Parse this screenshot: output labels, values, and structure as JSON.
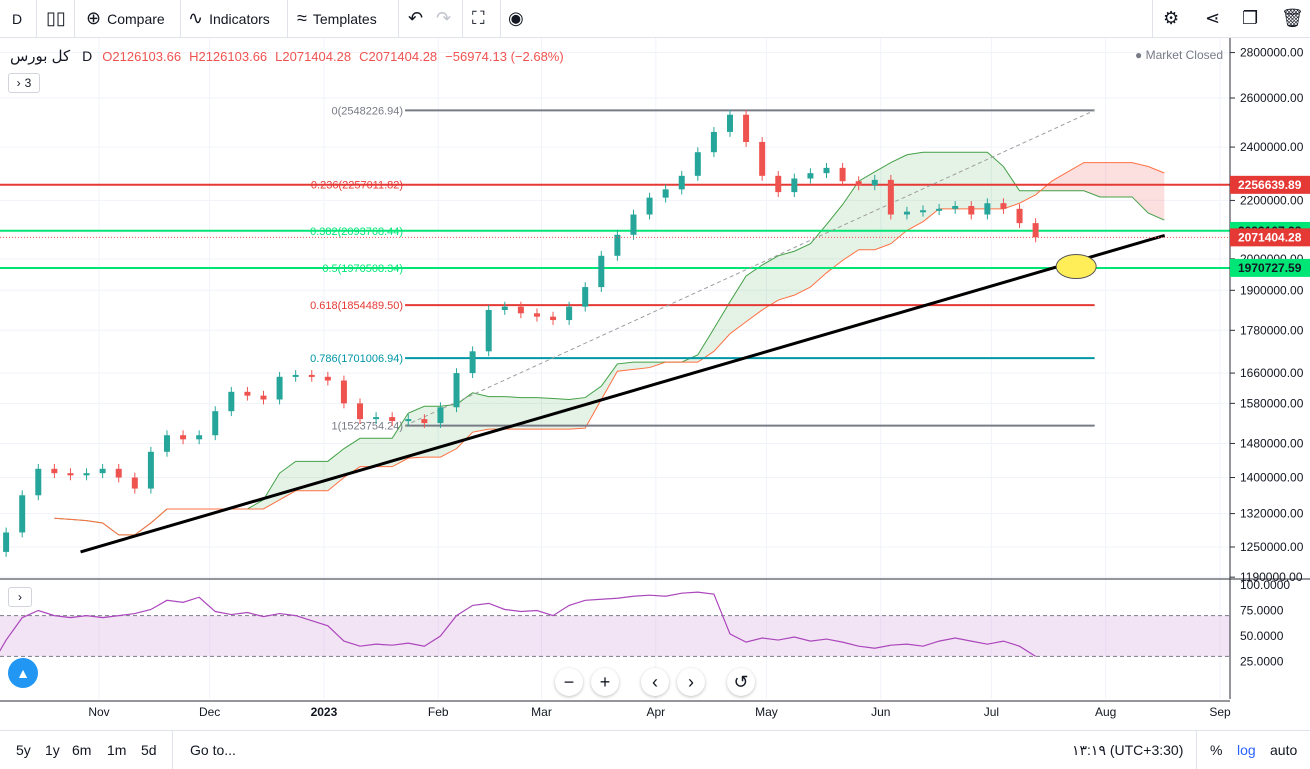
{
  "toolbar": {
    "interval": "D",
    "compare": "Compare",
    "indicators": "Indicators",
    "templates": "Templates"
  },
  "legend": {
    "symbol": "کل بورس",
    "interval": "D",
    "open": "O2126103.66",
    "high": "H2126103.66",
    "low": "L2071404.28",
    "close": "C2071404.28",
    "change": "−56974.13 (−2.68%)",
    "collapse_count": "3"
  },
  "market_status": "Market Closed",
  "bottom": {
    "ranges": [
      "5y",
      "1y",
      "6m",
      "1m",
      "5d"
    ],
    "goto": "Go to...",
    "time": "۱۳:۱۹ (UTC+3:30)",
    "percent": "%",
    "log": "log",
    "auto": "auto"
  },
  "colors": {
    "up": "#26a69a",
    "down": "#ef5350",
    "fib_red": "#e53935",
    "fib_green": "#00e676",
    "fib_blue": "#0097a7",
    "fib_gray": "#787b86",
    "rsi": "#ab47bc"
  },
  "chart_data": {
    "type": "candlestick",
    "log_scale": true,
    "x_labels": [
      "Nov",
      "Dec",
      "2023",
      "Feb",
      "Mar",
      "Apr",
      "May",
      "Jun",
      "Jul",
      "Aug",
      "Sep"
    ],
    "price_ticks": [
      "2800000.00",
      "2600000.00",
      "2400000.00",
      "2200000.00",
      "2000000.00",
      "1900000.00",
      "1780000.00",
      "1660000.00",
      "1580000.00",
      "1480000.00",
      "1400000.00",
      "1320000.00",
      "1250000.00",
      "1190000.00"
    ],
    "price_labels": [
      {
        "value": "2256639.89",
        "color": "#e53935"
      },
      {
        "value": "2093107.28",
        "color": "#00e676"
      },
      {
        "value": "2071404.28",
        "color": "#e53935"
      },
      {
        "value": "1970727.59",
        "color": "#00e676"
      }
    ],
    "fib_levels": [
      {
        "label": "0(2548226.94)",
        "value": 2548226.94,
        "color": "#787b86"
      },
      {
        "label": "0.236(2257011.82)",
        "value": 2257011.82,
        "color": "#e53935"
      },
      {
        "label": "0.382(2093768.44)",
        "value": 2093768.44,
        "color": "#00e676"
      },
      {
        "label": "0.5(1970508.34)",
        "value": 1970508.34,
        "color": "#00e676"
      },
      {
        "label": "0.618(1854489.50)",
        "value": 1854489.5,
        "color": "#e53935"
      },
      {
        "label": "0.786(1701006.94)",
        "value": 1701006.94,
        "color": "#0097a7"
      },
      {
        "label": "1(1523754.24)",
        "value": 1523754.24,
        "color": "#787b86"
      }
    ],
    "trendline": {
      "start": {
        "date": "2022-10-27",
        "value": 1240000
      },
      "end": {
        "date": "2023-08-17",
        "value": 2078000
      }
    },
    "highlight_ellipse": {
      "date": "2023-07-24",
      "value": 1975000
    },
    "close_series": [
      1310000,
      1305000,
      1300000,
      1290000,
      1240000,
      1280000,
      1360000,
      1420000,
      1410000,
      1405000,
      1410000,
      1420000,
      1400000,
      1375000,
      1460000,
      1500000,
      1490000,
      1500000,
      1560000,
      1610000,
      1600000,
      1590000,
      1650000,
      1655000,
      1650000,
      1640000,
      1580000,
      1540000,
      1545000,
      1535000,
      1540000,
      1530000,
      1570000,
      1660000,
      1720000,
      1840000,
      1850000,
      1830000,
      1820000,
      1810000,
      1850000,
      1910000,
      2010000,
      2080000,
      2150000,
      2210000,
      2240000,
      2290000,
      2380000,
      2460000,
      2530000,
      2420000,
      2290000,
      2230000,
      2280000,
      2300000,
      2320000,
      2270000,
      2255000,
      2275000,
      2150000,
      2160000,
      2165000,
      2170000,
      2180000,
      2150000,
      2190000,
      2170000,
      2120000,
      2071404
    ],
    "rsi": {
      "ticks": [
        "100.0000",
        "75.0000",
        "50.0000",
        "25.0000"
      ],
      "band": [
        30,
        70
      ],
      "values": [
        32,
        28,
        25,
        24,
        19,
        46,
        68,
        75,
        70,
        68,
        70,
        68,
        70,
        72,
        76,
        85,
        83,
        88,
        74,
        71,
        73,
        69,
        72,
        70,
        65,
        60,
        45,
        40,
        42,
        41,
        43,
        40,
        50,
        70,
        80,
        82,
        76,
        74,
        75,
        70,
        80,
        85,
        86,
        87,
        89,
        90,
        89,
        92,
        93,
        91,
        52,
        44,
        48,
        46,
        49,
        45,
        47,
        44,
        40,
        38,
        41,
        42,
        40,
        45,
        48,
        45,
        42,
        45,
        40,
        30
      ]
    }
  }
}
